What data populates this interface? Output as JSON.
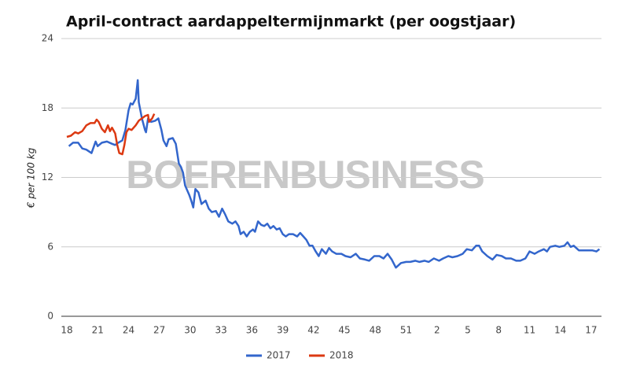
{
  "chart_data": {
    "type": "line",
    "title": "April-contract aardappeltermijnmarkt (per oogstjaar)",
    "y_label": "€ per 100 kg",
    "watermark": "BOERENBUSINESS",
    "xlim": [
      0,
      52
    ],
    "xticks": [
      {
        "value": 0,
        "label": "18"
      },
      {
        "value": 3,
        "label": "21"
      },
      {
        "value": 6,
        "label": "24"
      },
      {
        "value": 9,
        "label": "27"
      },
      {
        "value": 12,
        "label": "30"
      },
      {
        "value": 15,
        "label": "33"
      },
      {
        "value": 18,
        "label": "36"
      },
      {
        "value": 21,
        "label": "39"
      },
      {
        "value": 24,
        "label": "42"
      },
      {
        "value": 27,
        "label": "45"
      },
      {
        "value": 30,
        "label": "48"
      },
      {
        "value": 33,
        "label": "51"
      },
      {
        "value": 36,
        "label": "2"
      },
      {
        "value": 39,
        "label": "5"
      },
      {
        "value": 42,
        "label": "8"
      },
      {
        "value": 45,
        "label": "11"
      },
      {
        "value": 48,
        "label": "14"
      },
      {
        "value": 51,
        "label": "17"
      }
    ],
    "ylim": [
      0,
      24
    ],
    "yticks": [
      0,
      6,
      12,
      18,
      24
    ],
    "grid": true,
    "legend": "bottom",
    "series": [
      {
        "name": "2017",
        "color": "#3366cc",
        "x": [
          0.2,
          0.6,
          1.1,
          1.5,
          1.9,
          2.4,
          2.8,
          3.0,
          3.4,
          3.9,
          4.4,
          4.7,
          5.0,
          5.4,
          5.7,
          6.0,
          6.2,
          6.4,
          6.7,
          6.9,
          7.0,
          7.3,
          7.6,
          7.7,
          7.9,
          8.2,
          8.6,
          8.9,
          9.2,
          9.4,
          9.7,
          9.9,
          10.3,
          10.6,
          10.9,
          11.1,
          11.3,
          11.5,
          11.9,
          12.1,
          12.3,
          12.5,
          12.8,
          13.1,
          13.5,
          13.8,
          14.1,
          14.5,
          14.8,
          15.1,
          15.4,
          15.7,
          16.1,
          16.4,
          16.7,
          16.9,
          17.2,
          17.5,
          17.8,
          18.1,
          18.3,
          18.6,
          18.9,
          19.2,
          19.5,
          19.8,
          20.1,
          20.4,
          20.7,
          21.0,
          21.3,
          21.6,
          22.0,
          22.4,
          22.7,
          23.0,
          23.3,
          23.6,
          23.9,
          24.2,
          24.5,
          24.8,
          25.2,
          25.5,
          25.8,
          26.2,
          26.7,
          27.1,
          27.6,
          28.1,
          28.5,
          29.0,
          29.4,
          29.9,
          30.4,
          30.8,
          31.2,
          31.6,
          32.0,
          32.5,
          33.0,
          33.4,
          33.9,
          34.3,
          34.8,
          35.2,
          35.7,
          36.2,
          36.6,
          37.1,
          37.5,
          38.0,
          38.5,
          38.9,
          39.4,
          39.8,
          40.1,
          40.4,
          40.9,
          41.4,
          41.8,
          42.3,
          42.7,
          43.2,
          43.7,
          44.1,
          44.6,
          45.0,
          45.5,
          45.9,
          46.4,
          46.7,
          47.0,
          47.5,
          47.9,
          48.4,
          48.7,
          49.0,
          49.3,
          49.8,
          50.2,
          50.7,
          51.1,
          51.5,
          51.8
        ],
        "values": [
          14.7,
          15.0,
          15.0,
          14.5,
          14.4,
          14.1,
          15.1,
          14.7,
          15.0,
          15.1,
          14.9,
          14.8,
          15.0,
          15.2,
          16.1,
          17.8,
          18.4,
          18.3,
          18.8,
          20.4,
          18.5,
          17.1,
          16.1,
          15.9,
          17.1,
          16.8,
          16.9,
          17.1,
          16.1,
          15.2,
          14.7,
          15.3,
          15.4,
          14.9,
          13.2,
          12.9,
          12.4,
          11.3,
          10.5,
          10.0,
          9.4,
          11.0,
          10.7,
          9.7,
          10.0,
          9.3,
          9.0,
          9.1,
          8.6,
          9.3,
          8.8,
          8.2,
          8.0,
          8.2,
          7.8,
          7.1,
          7.3,
          6.9,
          7.3,
          7.5,
          7.3,
          8.2,
          7.9,
          7.8,
          8.0,
          7.6,
          7.8,
          7.5,
          7.6,
          7.1,
          6.9,
          7.1,
          7.1,
          6.9,
          7.2,
          6.9,
          6.6,
          6.1,
          6.1,
          5.6,
          5.2,
          5.8,
          5.4,
          5.9,
          5.6,
          5.4,
          5.4,
          5.2,
          5.1,
          5.4,
          5.0,
          4.9,
          4.8,
          5.2,
          5.2,
          5.0,
          5.4,
          4.9,
          4.2,
          4.6,
          4.7,
          4.7,
          4.8,
          4.7,
          4.8,
          4.7,
          5.0,
          4.8,
          5.0,
          5.2,
          5.1,
          5.2,
          5.4,
          5.8,
          5.7,
          6.1,
          6.1,
          5.6,
          5.2,
          4.9,
          5.3,
          5.2,
          5.0,
          5.0,
          4.8,
          4.8,
          5.0,
          5.6,
          5.4,
          5.6,
          5.8,
          5.6,
          6.0,
          6.1,
          6.0,
          6.1,
          6.4,
          6.0,
          6.1,
          5.7,
          5.7,
          5.7,
          5.7,
          5.6,
          5.8
        ]
      },
      {
        "name": "2018",
        "color": "#dc3912",
        "x": [
          0.0,
          0.4,
          0.8,
          1.1,
          1.5,
          1.9,
          2.3,
          2.7,
          2.9,
          3.1,
          3.4,
          3.7,
          4.0,
          4.2,
          4.4,
          4.7,
          4.9,
          5.1,
          5.4,
          5.6,
          5.8,
          6.0,
          6.3,
          6.7,
          7.0,
          7.3,
          7.6,
          7.9,
          8.0,
          8.3,
          8.5
        ],
        "values": [
          15.5,
          15.6,
          15.9,
          15.8,
          16.0,
          16.5,
          16.7,
          16.7,
          17.0,
          16.8,
          16.2,
          15.9,
          16.5,
          16.0,
          16.3,
          15.8,
          14.8,
          14.1,
          14.0,
          14.8,
          15.9,
          16.2,
          16.1,
          16.5,
          16.9,
          17.1,
          17.3,
          17.4,
          16.8,
          17.1,
          17.5
        ]
      }
    ]
  }
}
